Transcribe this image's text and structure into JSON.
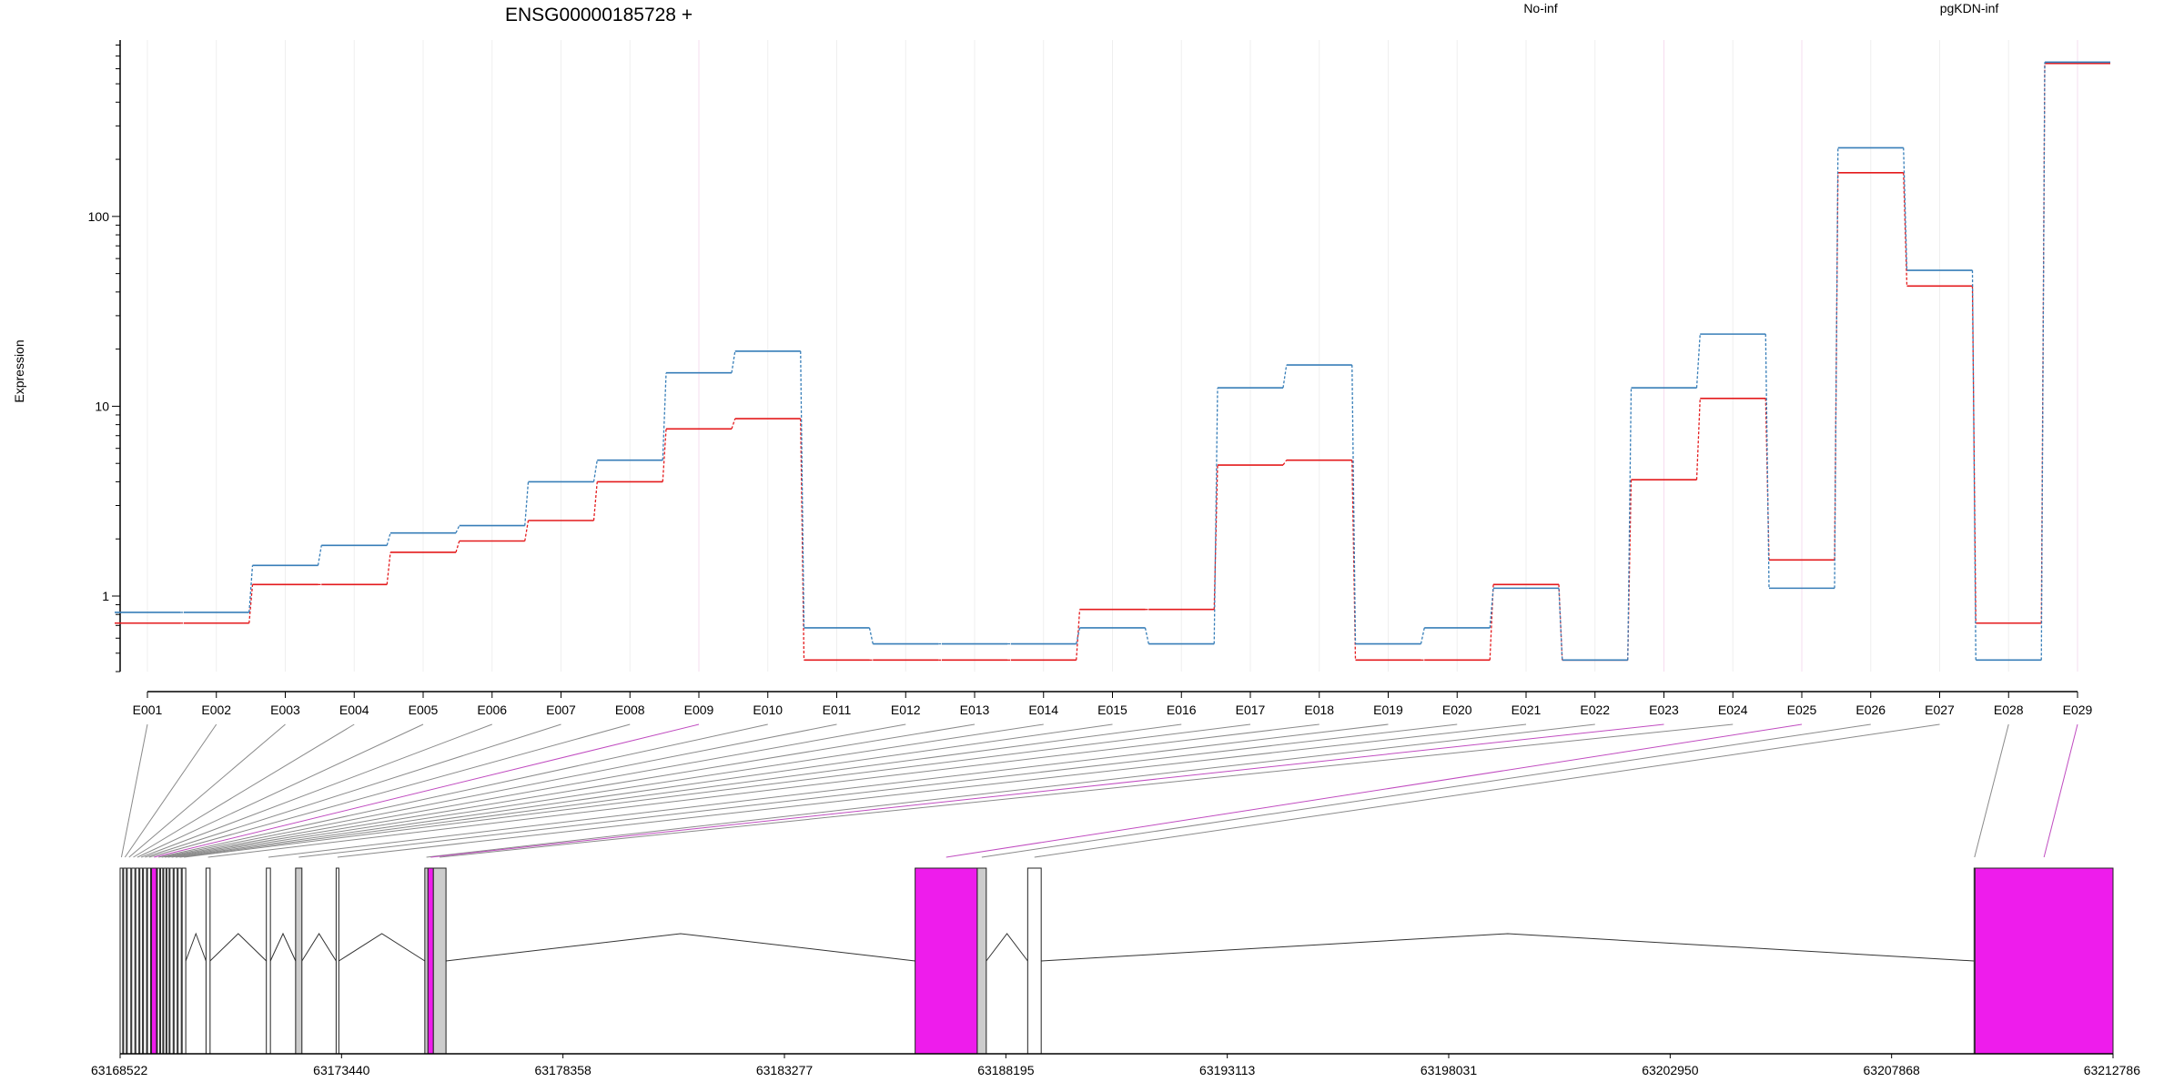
{
  "title": "ENSG00000185728 +",
  "ylabel": "Expression",
  "legend": [
    {
      "label": "No-inf",
      "color": "#e41a1c"
    },
    {
      "label": "pgKDN-inf",
      "color": "#377eb8"
    }
  ],
  "chart_data": {
    "type": "line",
    "title": "ENSG00000185728 +",
    "ylabel": "Expression",
    "xlabel": "",
    "yscale": "log",
    "ylim": [
      0.4,
      850
    ],
    "yticks": [
      {
        "value": 1,
        "label": "1"
      },
      {
        "value": 10,
        "label": "10"
      },
      {
        "value": 100,
        "label": "100"
      }
    ],
    "categories": [
      "E001",
      "E002",
      "E003",
      "E004",
      "E005",
      "E006",
      "E007",
      "E008",
      "E009",
      "E010",
      "E011",
      "E012",
      "E013",
      "E014",
      "E015",
      "E016",
      "E017",
      "E018",
      "E019",
      "E020",
      "E021",
      "E022",
      "E023",
      "E024",
      "E025",
      "E026",
      "E027",
      "E028",
      "E029"
    ],
    "series": [
      {
        "name": "No-inf",
        "color": "#e41a1c",
        "values": [
          0.72,
          0.72,
          1.15,
          1.15,
          1.7,
          1.95,
          2.5,
          4.0,
          7.6,
          8.6,
          0.46,
          0.46,
          0.46,
          0.46,
          0.85,
          0.85,
          4.9,
          5.2,
          0.46,
          0.46,
          1.15,
          0.46,
          4.1,
          11.0,
          1.55,
          170,
          43,
          0.72,
          640
        ]
      },
      {
        "name": "pgKDN-inf",
        "color": "#377eb8",
        "values": [
          0.82,
          0.82,
          1.45,
          1.85,
          2.15,
          2.35,
          4.0,
          5.2,
          15.0,
          19.5,
          0.68,
          0.56,
          0.56,
          0.56,
          0.68,
          0.56,
          12.5,
          16.5,
          0.56,
          0.68,
          1.1,
          0.46,
          12.5,
          24.0,
          1.1,
          230,
          52,
          0.46,
          650
        ]
      }
    ],
    "gene_model": {
      "coord_ticks": [
        63168522,
        63173440,
        63178358,
        63183277,
        63188195,
        63193113,
        63198031,
        63202950,
        63207868,
        63212786
      ],
      "coord_range": [
        63168522,
        63212786
      ],
      "exons": [
        {
          "id": "E001",
          "start": 63168522,
          "end": 63168580,
          "color": "#ffffff"
        },
        {
          "id": "E002",
          "start": 63168600,
          "end": 63168660,
          "color": "#ffffff"
        },
        {
          "id": "E003",
          "start": 63168680,
          "end": 63168760,
          "color": "#ffffff"
        },
        {
          "id": "E004",
          "start": 63168780,
          "end": 63168850,
          "color": "#ffffff"
        },
        {
          "id": "E005",
          "start": 63168870,
          "end": 63168940,
          "color": "#ffffff"
        },
        {
          "id": "E006",
          "start": 63168960,
          "end": 63169020,
          "color": "#ffffff"
        },
        {
          "id": "E007",
          "start": 63169040,
          "end": 63169110,
          "color": "#ffffff"
        },
        {
          "id": "E008",
          "start": 63169130,
          "end": 63169200,
          "color": "#ffffff"
        },
        {
          "id": "E009",
          "start": 63169220,
          "end": 63169330,
          "color": "#ee1cec"
        },
        {
          "id": "E010",
          "start": 63169350,
          "end": 63169400,
          "color": "#ffffff"
        },
        {
          "id": "E011",
          "start": 63169420,
          "end": 63169470,
          "color": "#ffffff"
        },
        {
          "id": "E012",
          "start": 63169490,
          "end": 63169540,
          "color": "#ffffff"
        },
        {
          "id": "E013",
          "start": 63169560,
          "end": 63169610,
          "color": "#ffffff"
        },
        {
          "id": "E014",
          "start": 63169630,
          "end": 63169700,
          "color": "#ffffff"
        },
        {
          "id": "E015",
          "start": 63169720,
          "end": 63169790,
          "color": "#ffffff"
        },
        {
          "id": "E016",
          "start": 63169810,
          "end": 63169880,
          "color": "#ffffff"
        },
        {
          "id": "E017",
          "start": 63169900,
          "end": 63169980,
          "color": "#ffffff"
        },
        {
          "id": "E018",
          "start": 63170430,
          "end": 63170520,
          "color": "#ffffff"
        },
        {
          "id": "E019",
          "start": 63171770,
          "end": 63171860,
          "color": "#ffffff"
        },
        {
          "id": "E020",
          "start": 63172420,
          "end": 63172560,
          "color": "#cccccc"
        },
        {
          "id": "E021",
          "start": 63173320,
          "end": 63173380,
          "color": "#ffffff"
        },
        {
          "id": "E022",
          "start": 63175290,
          "end": 63175360,
          "color": "#cccccc"
        },
        {
          "id": "E023",
          "start": 63175360,
          "end": 63175480,
          "color": "#ee1cec"
        },
        {
          "id": "E024",
          "start": 63175480,
          "end": 63175760,
          "color": "#cccccc"
        },
        {
          "id": "E025",
          "start": 63186180,
          "end": 63187560,
          "color": "#ee1cec"
        },
        {
          "id": "E026",
          "start": 63187560,
          "end": 63187760,
          "color": "#cccccc"
        },
        {
          "id": "E027",
          "start": 63188680,
          "end": 63188980,
          "color": "#ffffff"
        },
        {
          "id": "E028",
          "start": 63209700,
          "end": 63209720,
          "color": "#ffffff"
        },
        {
          "id": "E029",
          "start": 63209720,
          "end": 63212786,
          "color": "#ee1cec"
        }
      ],
      "highlighted_exons": [
        "E009",
        "E023",
        "E025",
        "E029"
      ]
    }
  }
}
